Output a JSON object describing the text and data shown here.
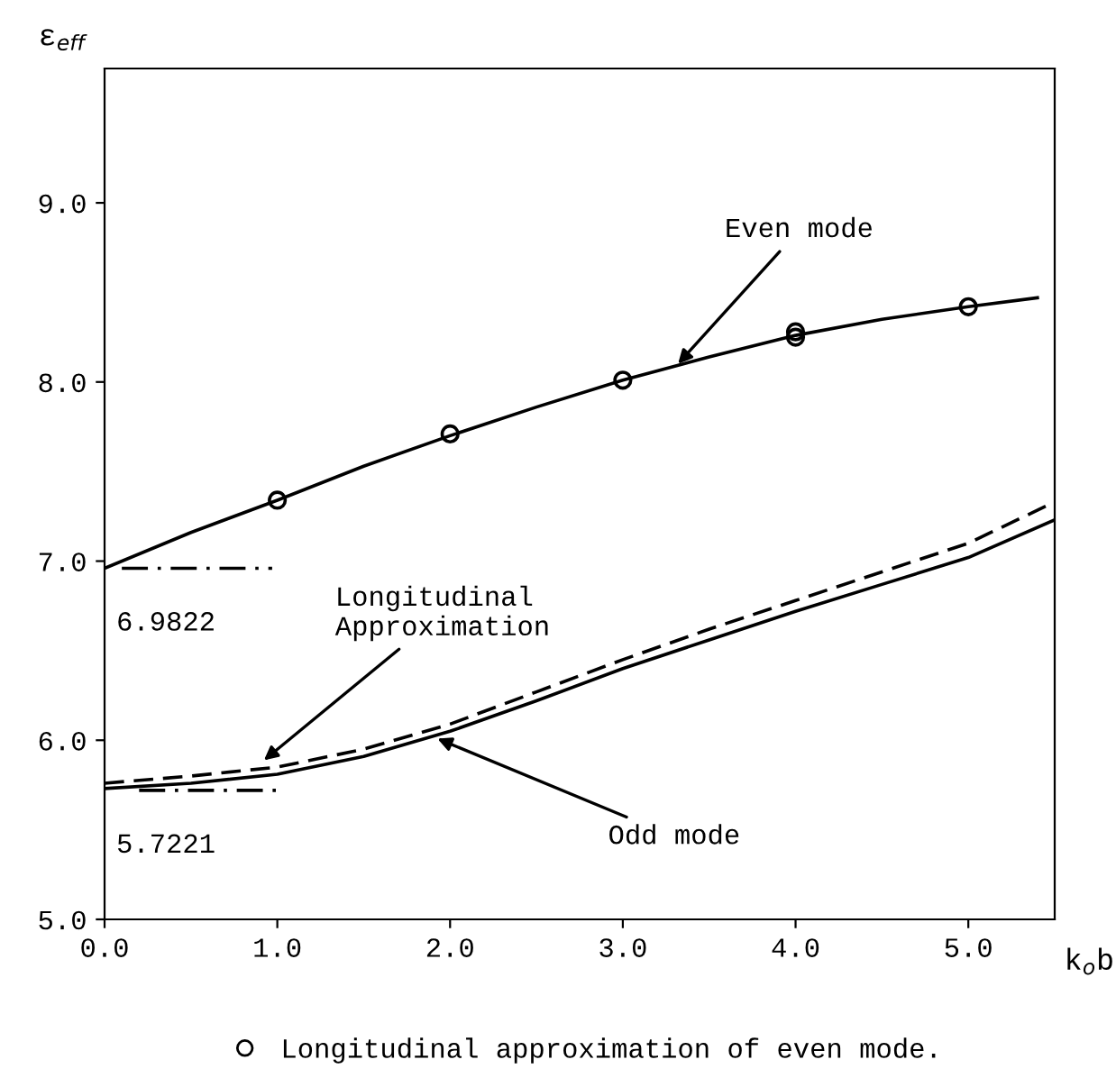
{
  "chart_data": {
    "type": "line",
    "xlabel": "k$_{o}$b",
    "ylabel": "ε$_{eff}$",
    "xlim": [
      0,
      5.5
    ],
    "ylim": [
      5,
      9.75
    ],
    "xticks": [
      {
        "value": 0,
        "label": "0.0"
      },
      {
        "value": 1,
        "label": "1.0"
      },
      {
        "value": 2,
        "label": "2.0"
      },
      {
        "value": 3,
        "label": "3.0"
      },
      {
        "value": 4,
        "label": "4.0"
      },
      {
        "value": 5,
        "label": "5.0"
      }
    ],
    "yticks": [
      {
        "value": 5,
        "label": "5.0"
      },
      {
        "value": 6,
        "label": "6.0"
      },
      {
        "value": 7,
        "label": "7.0"
      },
      {
        "value": 8,
        "label": "8.0"
      },
      {
        "value": 9,
        "label": "9.0"
      }
    ],
    "grid": false,
    "legend": "bottom",
    "series": [
      {
        "color": "#000000",
        "line_style": "solid",
        "x": [
          0,
          0.5,
          1,
          1.5,
          2,
          2.5,
          3,
          3.5,
          4,
          4.5,
          5,
          5.4
        ],
        "values": [
          6.96,
          7.16,
          7.34,
          7.53,
          7.7,
          7.86,
          8.01,
          8.14,
          8.26,
          8.35,
          8.42,
          8.47
        ]
      },
      {
        "color": "#000000",
        "line_style": "solid",
        "x": [
          0,
          0.5,
          1,
          1.5,
          2,
          2.5,
          3,
          3.5,
          4,
          4.5,
          5,
          5.5
        ],
        "values": [
          5.73,
          5.76,
          5.81,
          5.91,
          6.05,
          6.22,
          6.4,
          6.56,
          6.72,
          6.87,
          7.02,
          7.23
        ]
      },
      {
        "color": "#000000",
        "line_style": "dashed",
        "x": [
          0,
          0.5,
          1,
          1.5,
          2,
          2.5,
          3,
          3.5,
          4,
          4.5,
          5,
          5.5
        ],
        "values": [
          5.76,
          5.8,
          5.85,
          5.95,
          6.09,
          6.27,
          6.45,
          6.62,
          6.78,
          6.94,
          7.1,
          7.33
        ]
      },
      {
        "color": "#000000",
        "line_style": "dashdot",
        "x": [
          0.1,
          0.97
        ],
        "values": [
          6.96,
          6.96
        ]
      },
      {
        "color": "#000000",
        "line_style": "dashdot",
        "x": [
          0.2,
          1.0
        ],
        "values": [
          5.72,
          5.72
        ]
      },
      {
        "type": "scatter",
        "name": "Longitudinal approximation of even mode.",
        "color": "#000000",
        "marker": "circle",
        "x": [
          1,
          2,
          3,
          4,
          4,
          5
        ],
        "values": [
          7.34,
          7.71,
          8.01,
          8.25,
          8.28,
          8.42
        ]
      }
    ],
    "annotations": [
      {
        "text": "Even mode",
        "x": 3.3,
        "y": 8.08
      },
      {
        "text": "Longitudinal\nApproximation",
        "x": 0.9,
        "y": 5.87
      },
      {
        "text": "Odd mode",
        "x": 1.9,
        "y": 6.02
      },
      {
        "text": "6.9822",
        "x": 0.5,
        "y": 6.96
      },
      {
        "text": "5.7221",
        "x": 0.5,
        "y": 5.72
      }
    ]
  }
}
